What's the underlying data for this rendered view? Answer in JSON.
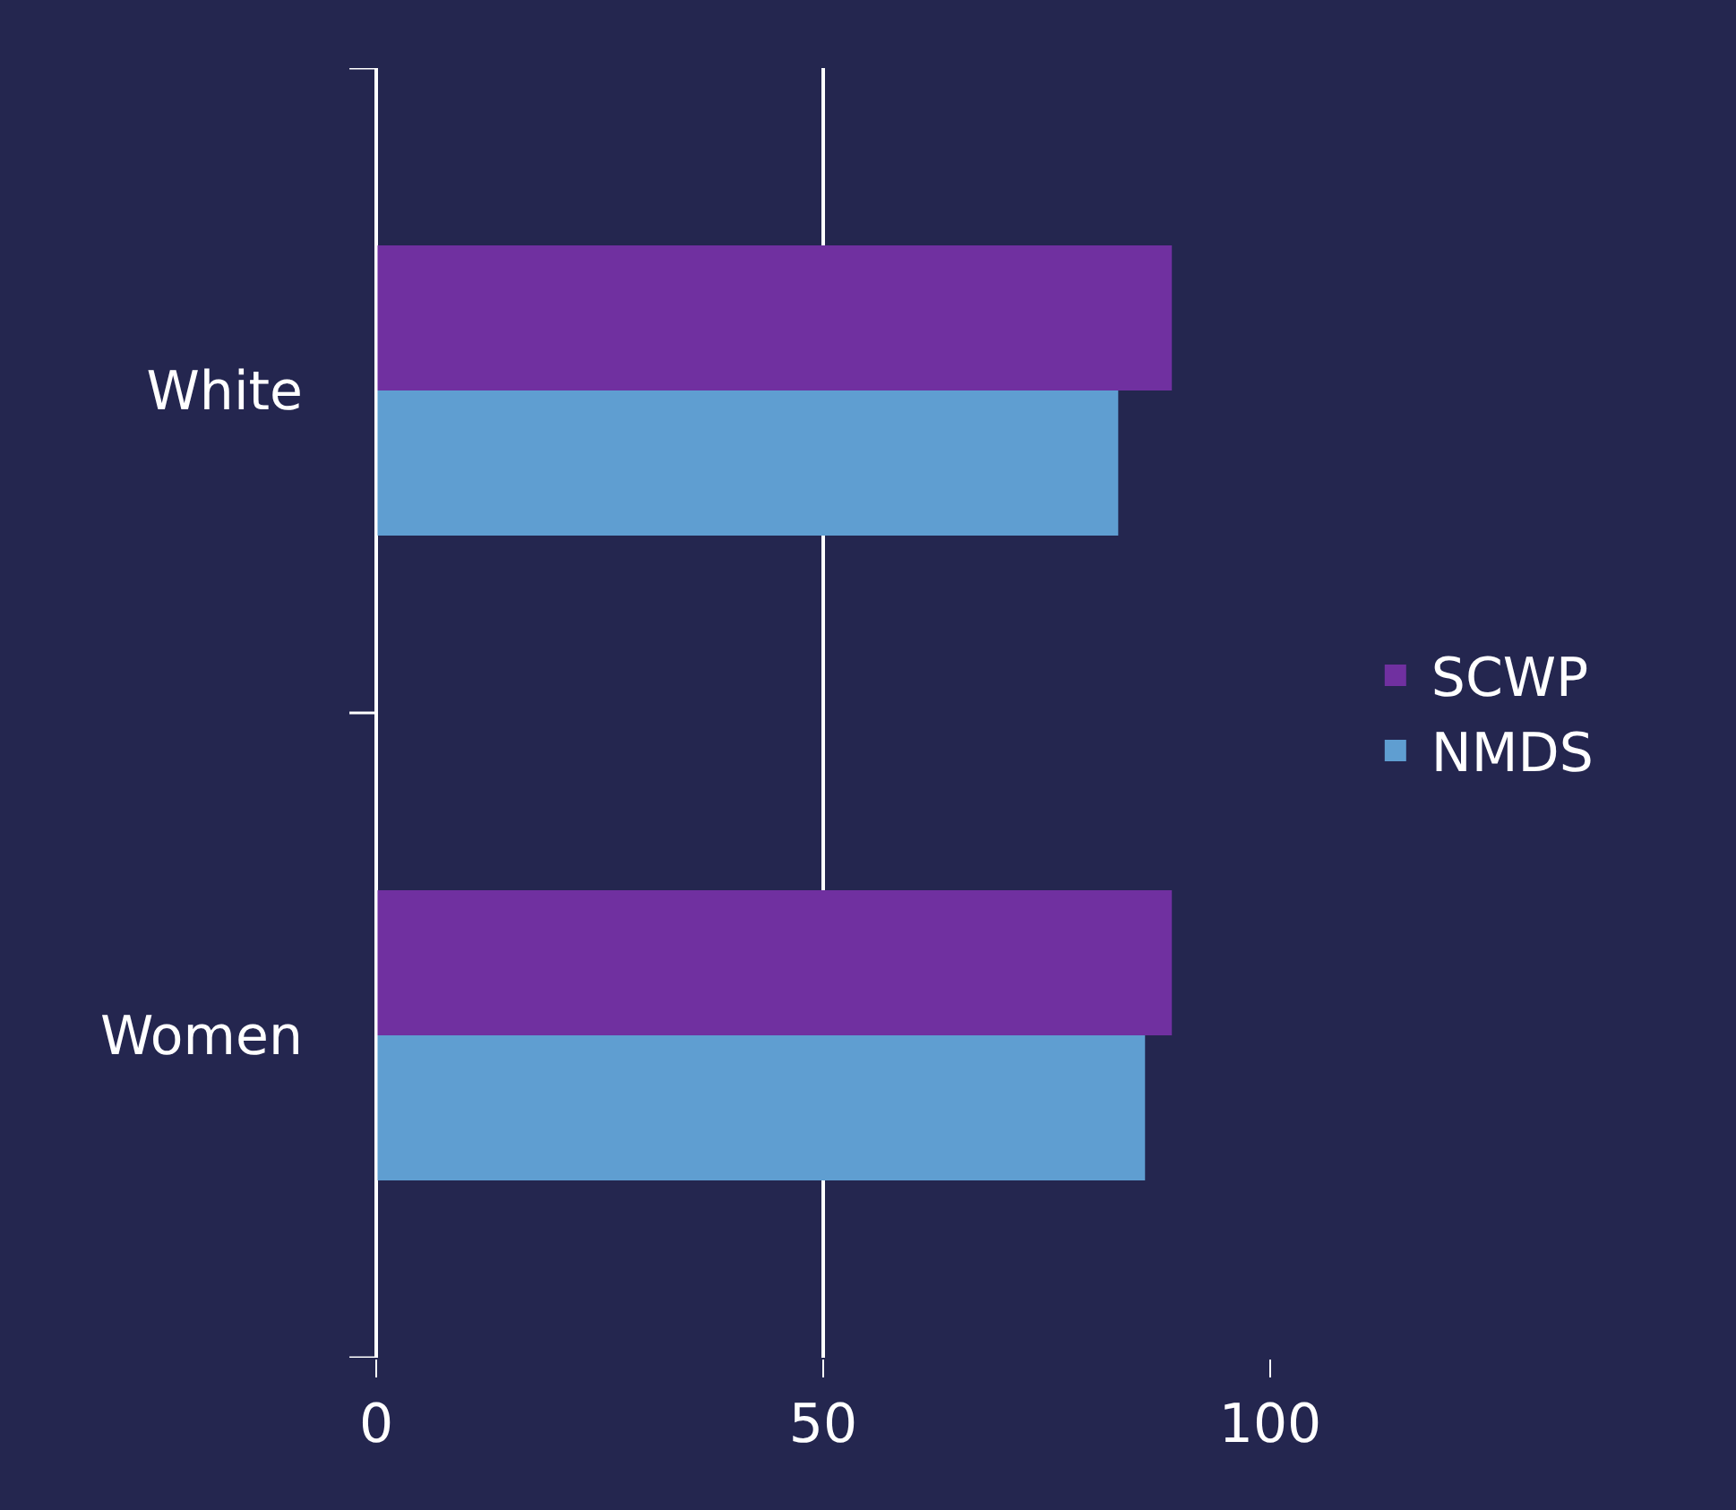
{
  "chart_data": {
    "type": "bar",
    "orientation": "horizontal",
    "categories": [
      "White",
      "Women"
    ],
    "series": [
      {
        "name": "SCWP",
        "color": "#7030a0",
        "values": [
          89,
          89
        ]
      },
      {
        "name": "NMDS",
        "color": "#5f9ed1",
        "values": [
          83,
          86
        ]
      }
    ],
    "xlim": [
      0,
      100
    ],
    "xticks": [
      0,
      50,
      100
    ],
    "grid": "x",
    "legend": "right"
  }
}
